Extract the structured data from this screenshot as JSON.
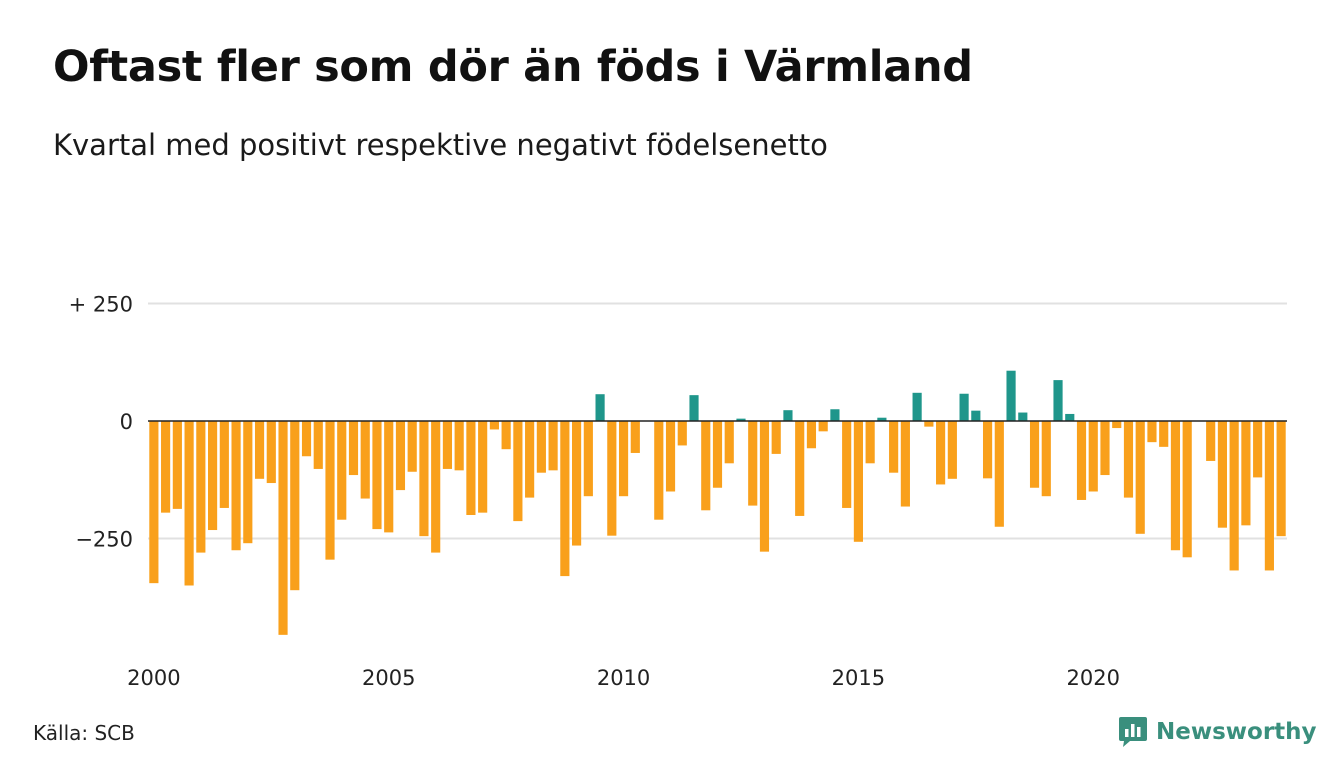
{
  "title": "Oftast fler som dör än föds i Värmland",
  "subtitle": "Kvartal med positivt respektive negativt födelsenetto",
  "source": "Källa: SCB",
  "brand": {
    "name": "Newsworthy",
    "icon": "newsworthy-logo-icon"
  },
  "colors": {
    "positive": "#1f968b",
    "negative": "#f9a01b",
    "grid": "#e1e1e1",
    "zero_line": "#222222",
    "brand": "#3a8f7d"
  },
  "chart_data": {
    "type": "bar",
    "x_start": "2000Q1",
    "frequency": "quarterly",
    "x_ticks": [
      "2000",
      "2005",
      "2010",
      "2015",
      "2020"
    ],
    "y_ticks": [
      {
        "value": 250,
        "label": "+ 250"
      },
      {
        "value": 0,
        "label": "0"
      },
      {
        "value": -250,
        "label": "−250"
      }
    ],
    "ylim": [
      -470,
      250
    ],
    "grid": "horizontal",
    "values": [
      -345,
      -195,
      -187,
      -350,
      -280,
      -232,
      -185,
      -275,
      -260,
      -123,
      -132,
      -455,
      -360,
      -75,
      -102,
      -295,
      -210,
      -115,
      -165,
      -230,
      -237,
      -147,
      -108,
      -245,
      -280,
      -102,
      -105,
      -200,
      -195,
      -18,
      -60,
      -213,
      -163,
      -110,
      -105,
      -330,
      -265,
      -160,
      57,
      -244,
      -160,
      -68,
      0,
      -210,
      -150,
      -52,
      55,
      -190,
      -142,
      -90,
      5,
      -180,
      -278,
      -70,
      23,
      -202,
      -58,
      -22,
      25,
      -185,
      -257,
      -90,
      7,
      -110,
      -182,
      60,
      -12,
      -135,
      -123,
      58,
      22,
      -122,
      -225,
      107,
      18,
      -142,
      -160,
      87,
      15,
      -168,
      -150,
      -115,
      -15,
      -163,
      -240,
      -45,
      -55,
      -275,
      -290,
      0,
      -85,
      -227,
      -318,
      -222,
      -120,
      -318,
      -245
    ]
  }
}
